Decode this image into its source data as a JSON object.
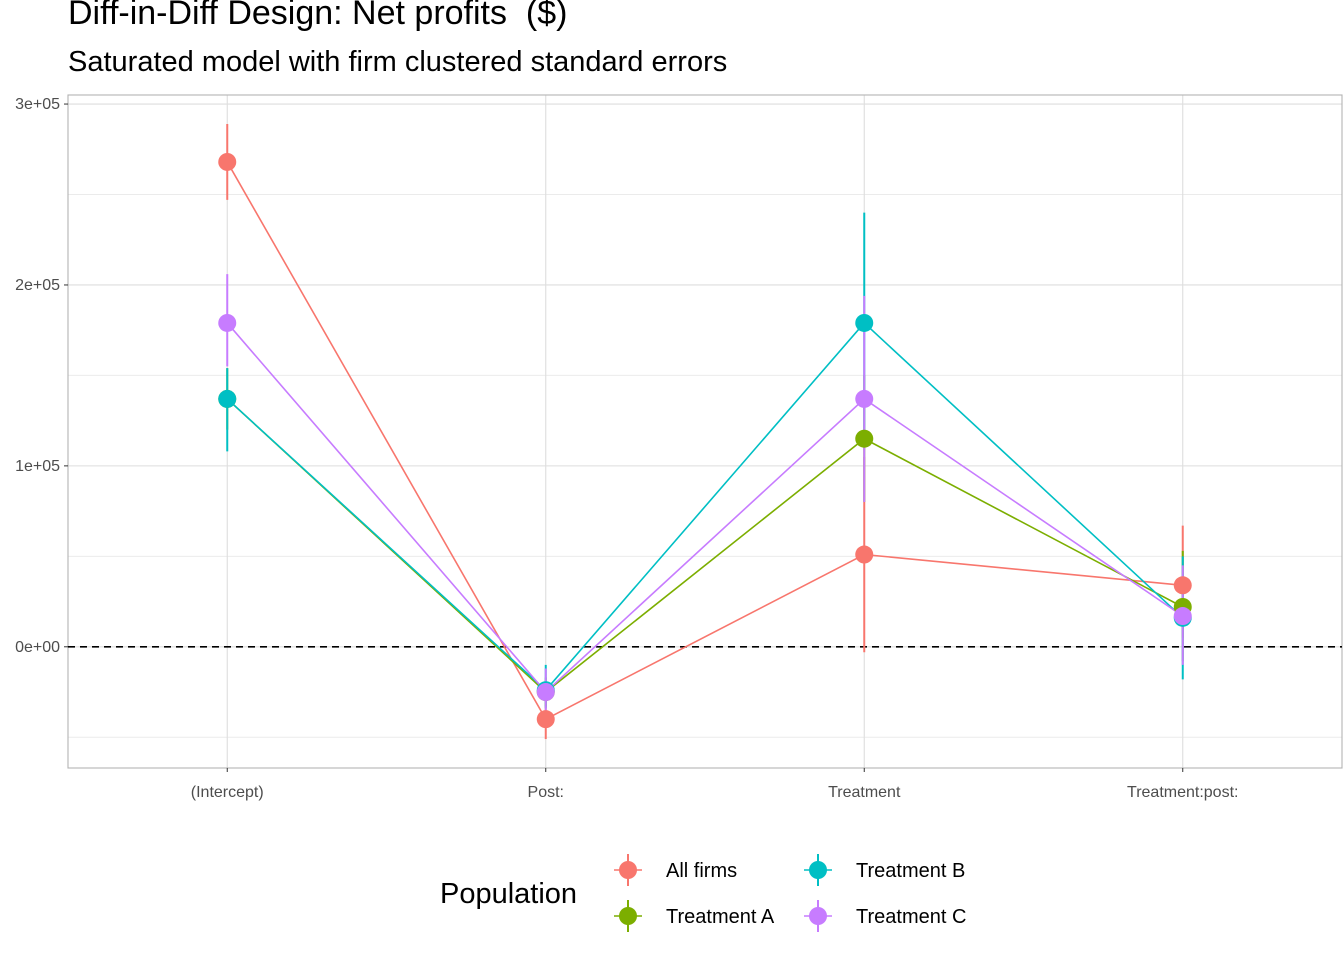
{
  "chart_data": {
    "type": "scatter",
    "title": "Diff-in-Diff Design: Net profits  ($)",
    "subtitle": "Saturated model with firm clustered standard errors",
    "xlabel": "",
    "ylabel": "",
    "categories": [
      "(Intercept)",
      "Post:",
      "Treatment",
      "Treatment:post:"
    ],
    "y_ticks": [
      {
        "value": 0,
        "label": "0e+00"
      },
      {
        "value": 100000,
        "label": "1e+05"
      },
      {
        "value": 200000,
        "label": "2e+05"
      },
      {
        "value": 300000,
        "label": "3e+05"
      }
    ],
    "ylim": [
      -67000,
      305000
    ],
    "grid": true,
    "reference_line": {
      "y": 0,
      "style": "dashed"
    },
    "legend": {
      "title": "Population",
      "position": "bottom"
    },
    "series": [
      {
        "name": "All firms",
        "color": "#F8766D",
        "values": [
          268000,
          -40000,
          51000,
          34000
        ],
        "lower": [
          247000,
          -51000,
          -3000,
          5000
        ],
        "upper": [
          289000,
          -29000,
          105000,
          67000
        ]
      },
      {
        "name": "Treatment A",
        "color": "#7CAE00",
        "values": [
          137000,
          -25000,
          115000,
          22000
        ],
        "lower": [
          120000,
          -33000,
          80000,
          -8000
        ],
        "upper": [
          154000,
          -17000,
          150000,
          53000
        ]
      },
      {
        "name": "Treatment B",
        "color": "#00BFC4",
        "values": [
          137000,
          -24000,
          179000,
          16000
        ],
        "lower": [
          108000,
          -34000,
          118000,
          -18000
        ],
        "upper": [
          154000,
          -10000,
          240000,
          50000
        ]
      },
      {
        "name": "Treatment C",
        "color": "#C77CFF",
        "values": [
          179000,
          -25000,
          137000,
          17000
        ],
        "lower": [
          155000,
          -37000,
          80000,
          -10000
        ],
        "upper": [
          206000,
          -12000,
          194000,
          45000
        ]
      }
    ]
  }
}
